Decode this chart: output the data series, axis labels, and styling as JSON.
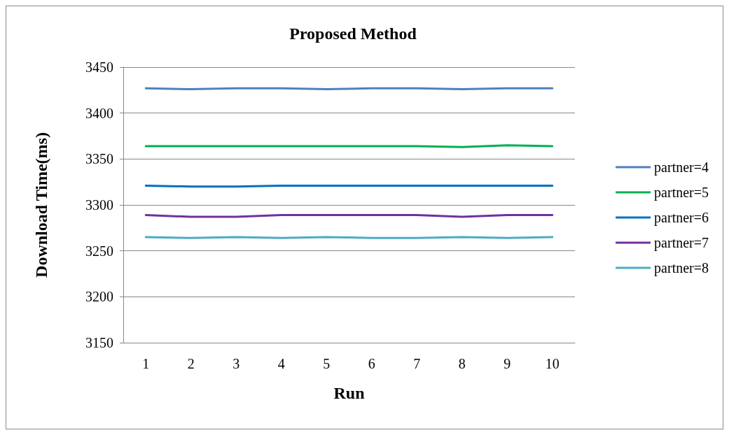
{
  "chart_data": {
    "type": "line",
    "title": "Proposed Method",
    "xlabel": "Run",
    "ylabel": "Download Time(ms)",
    "categories": [
      "1",
      "2",
      "3",
      "4",
      "5",
      "6",
      "7",
      "8",
      "9",
      "10"
    ],
    "series": [
      {
        "name": "partner=4",
        "color": "#4f81bd",
        "values": [
          3427,
          3426,
          3427,
          3427,
          3426,
          3427,
          3427,
          3426,
          3427,
          3427
        ]
      },
      {
        "name": "partner=5",
        "color": "#00b050",
        "values": [
          3364,
          3364,
          3364,
          3364,
          3364,
          3364,
          3364,
          3363,
          3365,
          3364
        ]
      },
      {
        "name": "partner=6",
        "color": "#0070c0",
        "values": [
          3321,
          3320,
          3320,
          3321,
          3321,
          3321,
          3321,
          3321,
          3321,
          3321
        ]
      },
      {
        "name": "partner=7",
        "color": "#7030a0",
        "values": [
          3289,
          3287,
          3287,
          3289,
          3289,
          3289,
          3289,
          3287,
          3289,
          3289
        ]
      },
      {
        "name": "partner=8",
        "color": "#4bacc6",
        "values": [
          3265,
          3264,
          3265,
          3264,
          3265,
          3264,
          3264,
          3265,
          3264,
          3265
        ]
      }
    ],
    "ylim": [
      3150,
      3450
    ],
    "yticks": [
      3150,
      3200,
      3250,
      3300,
      3350,
      3400,
      3450
    ],
    "grid": "y",
    "legend": "right",
    "marker": "none",
    "line_style": "solid"
  }
}
